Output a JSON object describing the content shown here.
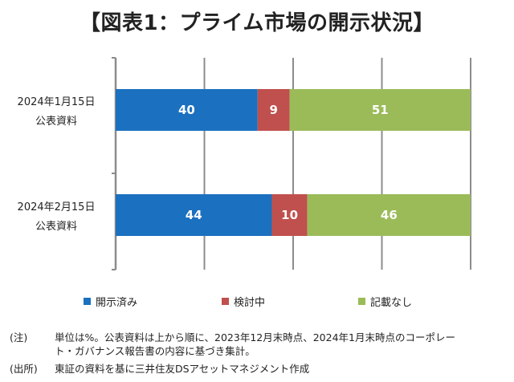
{
  "title": "【図表1：プライム市場の開示状況】",
  "chart_data": {
    "type": "bar",
    "orientation": "horizontal",
    "stacked": true,
    "normalized_percent": true,
    "xlim": [
      0,
      100
    ],
    "grid": "vertical",
    "legend_position": "bottom",
    "categories": [
      [
        "2024年1月15日",
        "公表資料"
      ],
      [
        "2024年2月15日",
        "公表資料"
      ]
    ],
    "series": [
      {
        "name": "開示済み",
        "color": "#1b70c0",
        "values": [
          40,
          44
        ]
      },
      {
        "name": "検討中",
        "color": "#c0504d",
        "values": [
          9,
          10
        ]
      },
      {
        "name": "記載なし",
        "color": "#9bbb59",
        "values": [
          51,
          46
        ]
      }
    ]
  },
  "notes": [
    {
      "tag": "(注)",
      "lines": [
        "単位は%。公表資料は上から順に、2023年12月末時点、2024年1月末時点のコーポレー",
        "ト・ガバナンス報告書の内容に基づき集計。"
      ]
    },
    {
      "tag": "(出所)",
      "lines": [
        "東証の資料を基に三井住友DSアセットマネジメント作成"
      ]
    }
  ]
}
